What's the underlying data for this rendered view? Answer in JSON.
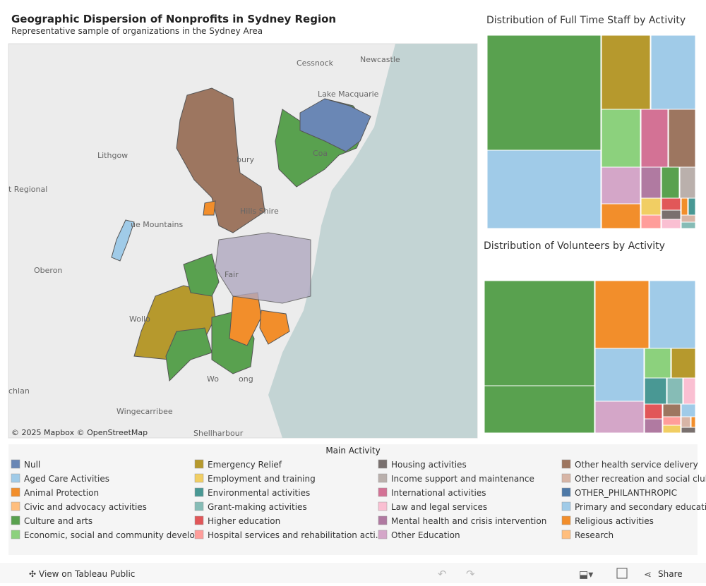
{
  "header": {
    "title": "Geographic Dispersion of Nonprofits in Sydney Region",
    "subtitle": "Representative sample of organizations in the Sydney Area"
  },
  "map": {
    "places": [
      "Cessnock",
      "Newcastle",
      "Lake Macquarie",
      "Lithgow",
      "t Regional",
      "ue Mountains",
      "Oberon",
      "Wollo",
      "Wingecarribee",
      "chlan",
      "Shellharbour",
      "Hills Shire",
      "bury",
      "Coa",
      "Fair",
      "Wo",
      "ong"
    ],
    "attribution": "© 2025 Mapbox © OpenStreetMap"
  },
  "treemaps": [
    {
      "title": "Distribution of Full Time Staff by Activity"
    },
    {
      "title": "Distribution of Volunteers by Activity"
    }
  ],
  "legend": {
    "title": "Main Activity",
    "items": [
      {
        "name": "Null",
        "color": "#6a87b5"
      },
      {
        "name": "Aged Care Activities",
        "color": "#a0cbe8"
      },
      {
        "name": "Animal Protection",
        "color": "#f28e2b"
      },
      {
        "name": "Civic and advocacy activities",
        "color": "#ffbe7d"
      },
      {
        "name": "Culture and arts",
        "color": "#59a14f"
      },
      {
        "name": "Economic, social and community develo...",
        "color": "#8cd17d"
      },
      {
        "name": "Emergency Relief",
        "color": "#b6992d"
      },
      {
        "name": "Employment and training",
        "color": "#f1ce63"
      },
      {
        "name": "Environmental activities",
        "color": "#499894"
      },
      {
        "name": "Grant-making activities",
        "color": "#86bcb6"
      },
      {
        "name": "Higher education",
        "color": "#e15759"
      },
      {
        "name": "Hospital services and rehabilitation acti...",
        "color": "#ff9d9a"
      },
      {
        "name": "Housing activities",
        "color": "#79706e"
      },
      {
        "name": "Income support and maintenance",
        "color": "#bab0ac"
      },
      {
        "name": "International activities",
        "color": "#d37295"
      },
      {
        "name": "Law and legal services",
        "color": "#fabfd2"
      },
      {
        "name": "Mental health and crisis intervention",
        "color": "#b07aa1"
      },
      {
        "name": "Other Education",
        "color": "#d4a6c8"
      },
      {
        "name": "Other health service delivery",
        "color": "#9d7660"
      },
      {
        "name": "Other recreation and social club",
        "color": "#d7b5a6"
      },
      {
        "name": "OTHER_PHILANTHROPIC",
        "color": "#4e79a7"
      },
      {
        "name": "Primary and secondary educati",
        "color": "#a0cbe8"
      },
      {
        "name": "Religious activities",
        "color": "#f28e2b"
      },
      {
        "name": "Research",
        "color": "#ffbe7d"
      }
    ]
  },
  "toolbar": {
    "view": "View on Tableau Public",
    "share": "Share"
  }
}
